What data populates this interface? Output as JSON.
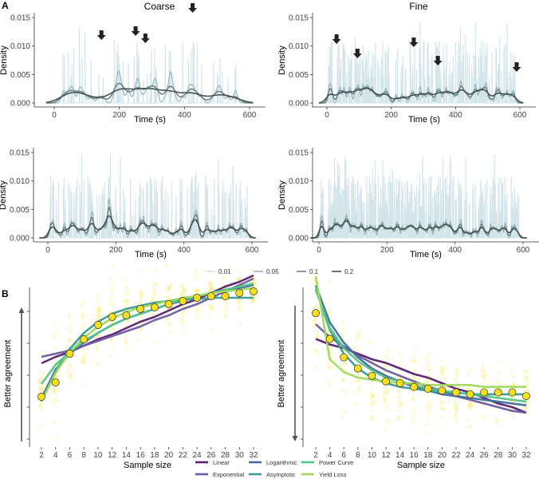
{
  "chart_data": [
    {
      "panel": "A",
      "type": "line",
      "subplots": [
        {
          "id": "coarse-top",
          "title": "Coarse",
          "xlabel": "Time (s)",
          "ylabel": "Density",
          "xticks": [
            "0",
            "200",
            "400",
            "600"
          ],
          "yticks": [
            "0.000",
            "0.005",
            "0.010",
            "0.015"
          ],
          "xlim": [
            -30,
            615
          ],
          "ylim": [
            0,
            0.015
          ],
          "arrows_at_time": [
            145,
            250,
            280,
            425
          ],
          "seed": 11,
          "events": 60,
          "clustered": true
        },
        {
          "id": "fine-top",
          "title": "Fine",
          "xlabel": "Time (s)",
          "ylabel": "Density",
          "xticks": [
            "0",
            "200",
            "400",
            "600"
          ],
          "yticks": [
            "0.000",
            "0.005",
            "0.010",
            "0.015"
          ],
          "xlim": [
            -30,
            615
          ],
          "ylim": [
            0,
            0.015
          ],
          "arrows_at_time": [
            30,
            95,
            270,
            345,
            590
          ],
          "seed": 23,
          "events": 200,
          "clustered": false
        },
        {
          "id": "coarse-bottom",
          "title": "",
          "xlabel": "Time (s)",
          "ylabel": "Density",
          "xticks": [
            "0",
            "200",
            "400",
            "600"
          ],
          "yticks": [
            "0.000",
            "0.005",
            "0.010",
            "0.015"
          ],
          "xlim": [
            -10,
            615
          ],
          "ylim": [
            0,
            0.015
          ],
          "arrows_at_time": [],
          "seed": 37,
          "events": 160,
          "clustered": false
        },
        {
          "id": "fine-bottom",
          "title": "",
          "xlabel": "Time (s)",
          "ylabel": "Density",
          "xticks": [
            "0",
            "200",
            "400",
            "600"
          ],
          "yticks": [
            "0.000",
            "0.005",
            "0.010",
            "0.015"
          ],
          "xlim": [
            -10,
            615
          ],
          "ylim": [
            0,
            0.015
          ],
          "arrows_at_time": [],
          "seed": 51,
          "events": 320,
          "clustered": false
        }
      ],
      "legend": {
        "placement": "bottom",
        "entries": [
          {
            "label": "0.01",
            "color": "#d3e5ea"
          },
          {
            "label": "0.05",
            "color": "#98b6bb"
          },
          {
            "label": "0.1",
            "color": "#6d8387"
          },
          {
            "label": "0.2",
            "color": "#46534f"
          }
        ]
      }
    },
    {
      "panel": "B",
      "type": "line",
      "x": [
        2,
        4,
        6,
        8,
        10,
        12,
        14,
        16,
        18,
        20,
        22,
        24,
        26,
        28,
        30,
        32
      ],
      "xlabel": "Sample size",
      "ylabel": "Better agreement",
      "point_color": "#f7e01b",
      "subplots": [
        {
          "id": "left",
          "arrow": "up",
          "means": [
            0.2,
            0.29,
            0.47,
            0.56,
            0.65,
            0.7,
            0.71,
            0.75,
            0.76,
            0.78,
            0.8,
            0.82,
            0.83,
            0.83,
            0.85,
            0.86
          ],
          "series": [
            {
              "name": "Linear",
              "values": [
                0.41,
                0.45,
                0.48,
                0.52,
                0.56,
                0.59,
                0.63,
                0.67,
                0.7,
                0.74,
                0.78,
                0.81,
                0.85,
                0.89,
                0.92,
                0.96
              ]
            },
            {
              "name": "Exponential",
              "values": [
                0.45,
                0.47,
                0.49,
                0.52,
                0.55,
                0.58,
                0.61,
                0.64,
                0.68,
                0.71,
                0.75,
                0.78,
                0.82,
                0.86,
                0.9,
                0.94
              ]
            },
            {
              "name": "Logarithmic",
              "values": [
                0.19,
                0.37,
                0.47,
                0.54,
                0.6,
                0.65,
                0.69,
                0.72,
                0.75,
                0.78,
                0.8,
                0.83,
                0.85,
                0.87,
                0.88,
                0.9
              ]
            },
            {
              "name": "Asymptotic",
              "values": [
                0.17,
                0.36,
                0.5,
                0.6,
                0.67,
                0.72,
                0.75,
                0.77,
                0.79,
                0.8,
                0.81,
                0.81,
                0.82,
                0.82,
                0.82,
                0.82
              ]
            },
            {
              "name": "Power Curve",
              "values": [
                0.28,
                0.4,
                0.48,
                0.55,
                0.6,
                0.65,
                0.69,
                0.72,
                0.75,
                0.78,
                0.81,
                0.83,
                0.85,
                0.87,
                0.89,
                0.91
              ]
            },
            {
              "name": "Yield Loss",
              "values": [
                0.17,
                0.35,
                0.48,
                0.57,
                0.64,
                0.69,
                0.73,
                0.76,
                0.78,
                0.8,
                0.82,
                0.83,
                0.85,
                0.86,
                0.87,
                0.88
              ]
            }
          ]
        },
        {
          "id": "right",
          "arrow": "down",
          "means": [
            0.67,
            0.53,
            0.43,
            0.37,
            0.33,
            0.3,
            0.29,
            0.27,
            0.26,
            0.25,
            0.24,
            0.23,
            0.24,
            0.24,
            0.24,
            0.22
          ],
          "series": [
            {
              "name": "Linear",
              "values": [
                0.53,
                0.5,
                0.48,
                0.45,
                0.42,
                0.4,
                0.37,
                0.34,
                0.32,
                0.29,
                0.26,
                0.24,
                0.21,
                0.18,
                0.16,
                0.13
              ]
            },
            {
              "name": "Exponential",
              "values": [
                0.61,
                0.54,
                0.49,
                0.44,
                0.4,
                0.36,
                0.33,
                0.3,
                0.27,
                0.25,
                0.22,
                0.2,
                0.18,
                0.16,
                0.14,
                0.13
              ]
            },
            {
              "name": "Logarithmic",
              "values": [
                0.82,
                0.62,
                0.51,
                0.43,
                0.37,
                0.33,
                0.3,
                0.27,
                0.25,
                0.23,
                0.22,
                0.21,
                0.2,
                0.19,
                0.18,
                0.17
              ]
            },
            {
              "name": "Asymptotic",
              "values": [
                0.8,
                0.58,
                0.45,
                0.37,
                0.32,
                0.29,
                0.27,
                0.26,
                0.25,
                0.24,
                0.24,
                0.23,
                0.23,
                0.23,
                0.23,
                0.23
              ]
            },
            {
              "name": "Power Curve",
              "values": [
                0.8,
                0.59,
                0.48,
                0.41,
                0.36,
                0.32,
                0.3,
                0.28,
                0.26,
                0.25,
                0.24,
                0.23,
                0.22,
                0.21,
                0.2,
                0.19
              ]
            },
            {
              "name": "Yield Loss",
              "values": [
                0.87,
                0.42,
                0.35,
                0.32,
                0.31,
                0.3,
                0.29,
                0.29,
                0.28,
                0.28,
                0.28,
                0.28,
                0.27,
                0.27,
                0.27,
                0.27
              ]
            }
          ]
        }
      ],
      "legend": {
        "placement": "bottom",
        "entries": [
          {
            "label": "Linear",
            "color": "#5a1d6f"
          },
          {
            "label": "Exponential",
            "color": "#6b5ca5"
          },
          {
            "label": "Logarithmic",
            "color": "#41709e"
          },
          {
            "label": "Asymptotic",
            "color": "#3a9b97"
          },
          {
            "label": "Power Curve",
            "color": "#52c58b"
          },
          {
            "label": "Yield Loss",
            "color": "#a0d95a"
          }
        ]
      }
    }
  ],
  "labels": {
    "panel_a": "A",
    "panel_b": "B"
  }
}
